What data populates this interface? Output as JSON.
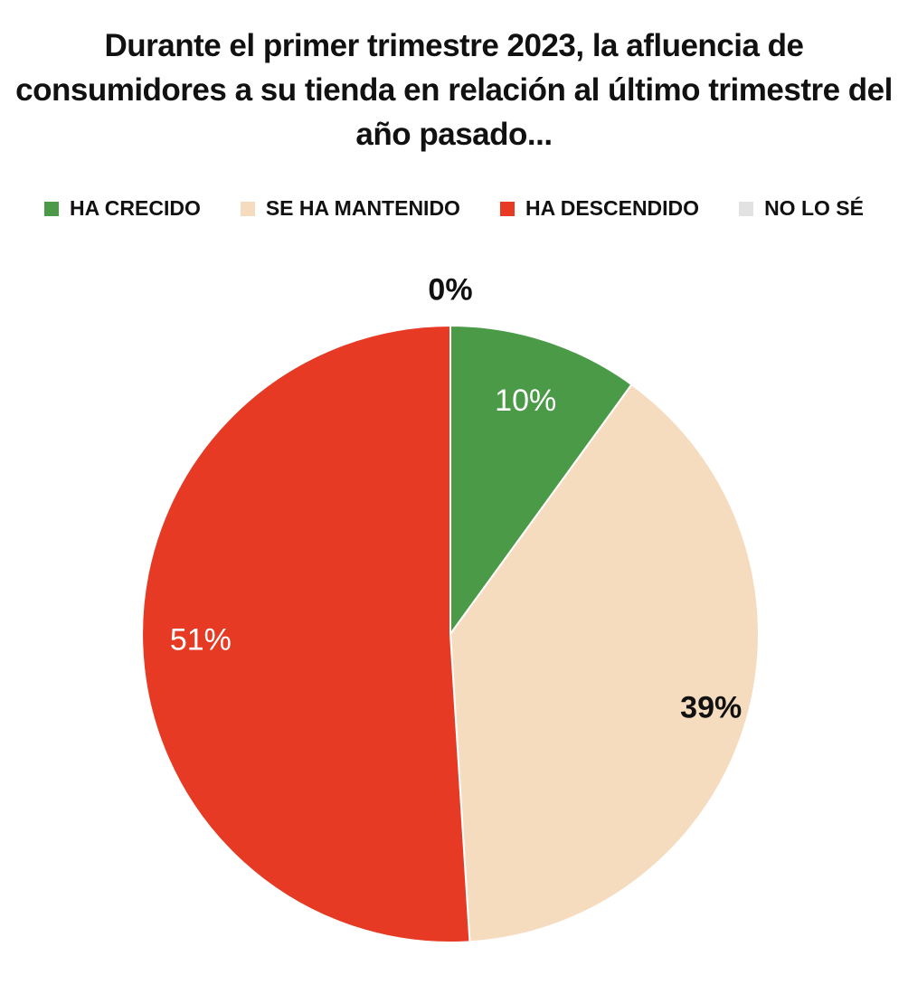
{
  "chart_data": {
    "type": "pie",
    "title": "Durante el primer trimestre 2023, la afluencia de consumidores a su tienda en relación al  último trimestre del año pasado...",
    "legend_position": "top",
    "categories": [
      "HA CRECIDO",
      "SE HA MANTENIDO",
      "HA DESCENDIDO",
      "NO LO SÉ"
    ],
    "values": [
      10,
      39,
      51,
      0
    ],
    "labels": [
      "10%",
      "39%",
      "51%",
      "0%"
    ],
    "colors": [
      "#4a9a47",
      "#f6dcbf",
      "#e63a24",
      "#e2e2e2"
    ]
  }
}
